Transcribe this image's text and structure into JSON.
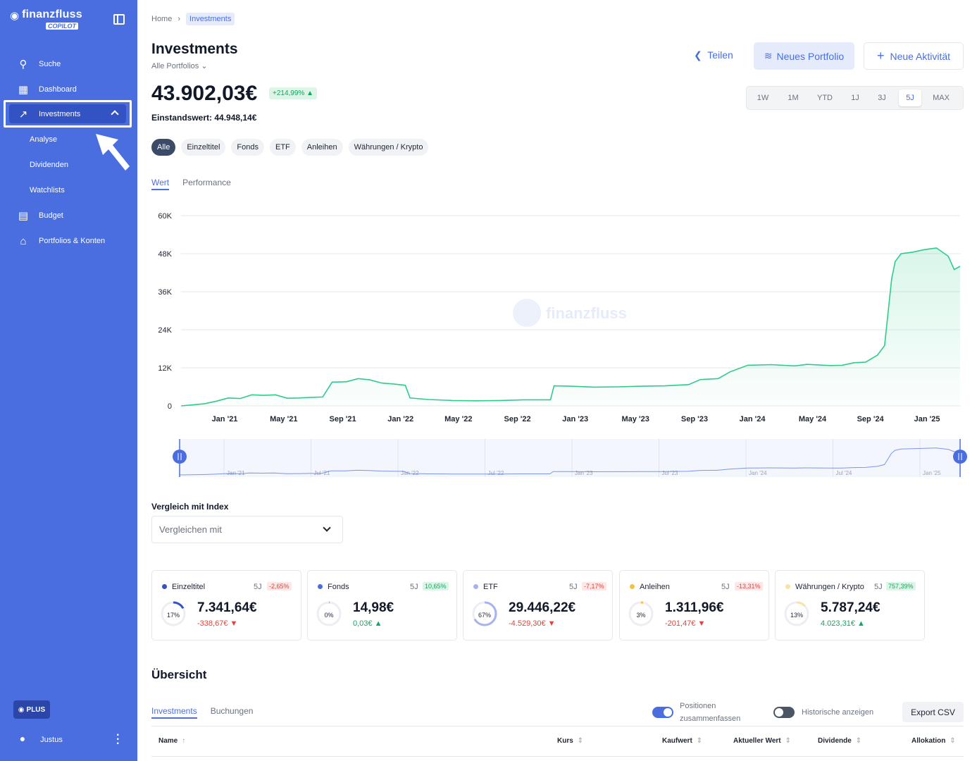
{
  "app": {
    "name": "finanzfluss",
    "badge": "COPILOT"
  },
  "sidebar": {
    "items": [
      {
        "label": "Suche",
        "icon": "search-icon"
      },
      {
        "label": "Dashboard",
        "icon": "dashboard-icon"
      },
      {
        "label": "Investments",
        "icon": "chart-icon",
        "active": true
      },
      {
        "label": "Analyse",
        "sub": true
      },
      {
        "label": "Dividenden",
        "sub": true
      },
      {
        "label": "Watchlists",
        "sub": true
      },
      {
        "label": "Budget",
        "icon": "budget-icon"
      },
      {
        "label": "Portfolios & Konten",
        "icon": "bank-icon"
      }
    ],
    "plan_badge": "PLUS",
    "user_name": "Justus"
  },
  "breadcrumb": {
    "home": "Home",
    "current": "Investments"
  },
  "header": {
    "title": "Investments",
    "portfolio_select": "Alle Portfolios",
    "share": "Teilen",
    "new_portfolio": "Neues Portfolio",
    "new_activity": "Neue Aktivität"
  },
  "summary": {
    "value": "43.902,03€",
    "gain": "+214,99%",
    "cost_basis": "Einstandswert: 44.948,14€"
  },
  "ranges": [
    "1W",
    "1M",
    "YTD",
    "1J",
    "3J",
    "5J",
    "MAX"
  ],
  "active_range": "5J",
  "filters": [
    "Alle",
    "Einzeltitel",
    "Fonds",
    "ETF",
    "Anleihen",
    "Währungen / Krypto"
  ],
  "chart_tabs": {
    "value": "Wert",
    "performance": "Performance"
  },
  "watermark": "finanzfluss",
  "chart_data": {
    "type": "area",
    "y_ticks": [
      "60K",
      "48K",
      "36K",
      "24K",
      "12K",
      "0"
    ],
    "ylim": [
      0,
      60000
    ],
    "x_ticks": [
      "Jan '21",
      "May '21",
      "Sep '21",
      "Jan '22",
      "May '22",
      "Sep '22",
      "Jan '23",
      "May '23",
      "Sep '23",
      "Jan '24",
      "May '24",
      "Sep '24",
      "Jan '25"
    ],
    "navigator_ticks": [
      "Jan '21",
      "Jul '21",
      "Jan '22",
      "Jul '22",
      "Jan '23",
      "Jul '23",
      "Jan '24",
      "Jul '24",
      "Jan '25"
    ],
    "color": "#2ecc8b",
    "series": [
      {
        "values": [
          [
            0,
            0
          ],
          [
            1,
            300
          ],
          [
            2,
            700
          ],
          [
            3,
            1500
          ],
          [
            4,
            2500
          ],
          [
            5,
            2300
          ],
          [
            6,
            3500
          ],
          [
            7,
            3300
          ],
          [
            8,
            3500
          ],
          [
            9,
            2400
          ],
          [
            10,
            2500
          ],
          [
            11,
            2700
          ],
          [
            12,
            2800
          ],
          [
            12.8,
            7500
          ],
          [
            14,
            7600
          ],
          [
            15,
            8600
          ],
          [
            16,
            8200
          ],
          [
            17,
            7200
          ],
          [
            18,
            6900
          ],
          [
            19,
            6500
          ],
          [
            19.4,
            2500
          ],
          [
            21,
            2000
          ],
          [
            23,
            1700
          ],
          [
            25,
            1600
          ],
          [
            27,
            1700
          ],
          [
            29,
            1900
          ],
          [
            31.3,
            1900
          ],
          [
            31.6,
            6300
          ],
          [
            33,
            6200
          ],
          [
            35,
            5900
          ],
          [
            37,
            6000
          ],
          [
            39,
            6200
          ],
          [
            41,
            6300
          ],
          [
            43,
            6700
          ],
          [
            44,
            8300
          ],
          [
            45.5,
            8600
          ],
          [
            46.5,
            10700
          ],
          [
            48,
            12800
          ],
          [
            50,
            13000
          ],
          [
            52,
            12600
          ],
          [
            53,
            13100
          ],
          [
            55,
            12700
          ],
          [
            56,
            12800
          ],
          [
            57,
            13600
          ],
          [
            58,
            13800
          ],
          [
            59,
            16000
          ],
          [
            59.6,
            19000
          ],
          [
            60.2,
            40000
          ],
          [
            60.5,
            45500
          ],
          [
            61,
            48000
          ],
          [
            62,
            48500
          ],
          [
            63,
            49300
          ],
          [
            64,
            49800
          ],
          [
            65,
            47200
          ],
          [
            65.5,
            43000
          ],
          [
            66,
            44000
          ]
        ]
      }
    ],
    "xlim": [
      0,
      66
    ],
    "x_tick_positions": [
      3.7,
      8.7,
      13.7,
      18.6,
      23.5,
      28.5,
      33.4,
      38.5,
      43.5,
      48.4,
      53.5,
      58.4,
      63.2
    ]
  },
  "compare": {
    "label": "Vergleich mit Index",
    "placeholder": "Vergleichen mit"
  },
  "cards": [
    {
      "name": "Einzeltitel",
      "period": "5J",
      "pct": "-2,65%",
      "amount": "7.341,64€",
      "change": "-338,67€",
      "share": "17%",
      "share_value": 0.17,
      "color": "#3352c4",
      "pct_dir": "neg",
      "chg_dir": "neg"
    },
    {
      "name": "Fonds",
      "period": "5J",
      "pct": "10,65%",
      "amount": "14,98€",
      "change": "0,03€",
      "share": "0%",
      "share_value": 0.0,
      "color": "#4a6ee0",
      "pct_dir": "pos",
      "chg_dir": "pos"
    },
    {
      "name": "ETF",
      "period": "5J",
      "pct": "-7,17%",
      "amount": "29.446,22€",
      "change": "-4.529,30€",
      "share": "67%",
      "share_value": 0.67,
      "color": "#a5b4f0",
      "pct_dir": "neg",
      "chg_dir": "neg"
    },
    {
      "name": "Anleihen",
      "period": "5J",
      "pct": "-13,31%",
      "amount": "1.311,96€",
      "change": "-201,47€",
      "share": "3%",
      "share_value": 0.03,
      "color": "#f5c33b",
      "pct_dir": "neg",
      "chg_dir": "neg"
    },
    {
      "name": "Währungen / Krypto",
      "period": "5J",
      "pct": "757,39%",
      "amount": "5.787,24€",
      "change": "4.023,31€",
      "share": "13%",
      "share_value": 0.13,
      "color": "#f9e3a3",
      "pct_dir": "pos",
      "chg_dir": "pos"
    }
  ],
  "overview": {
    "title": "Übersicht",
    "tabs": [
      "Investments",
      "Buchungen"
    ],
    "toggle_summarize": "Positionen zusammenfassen",
    "toggle_history": "Historische anzeigen",
    "export": "Export CSV",
    "columns": [
      "Name",
      "Kurs",
      "Kaufwert",
      "Aktueller Wert",
      "Dividende",
      "Allokation"
    ]
  }
}
